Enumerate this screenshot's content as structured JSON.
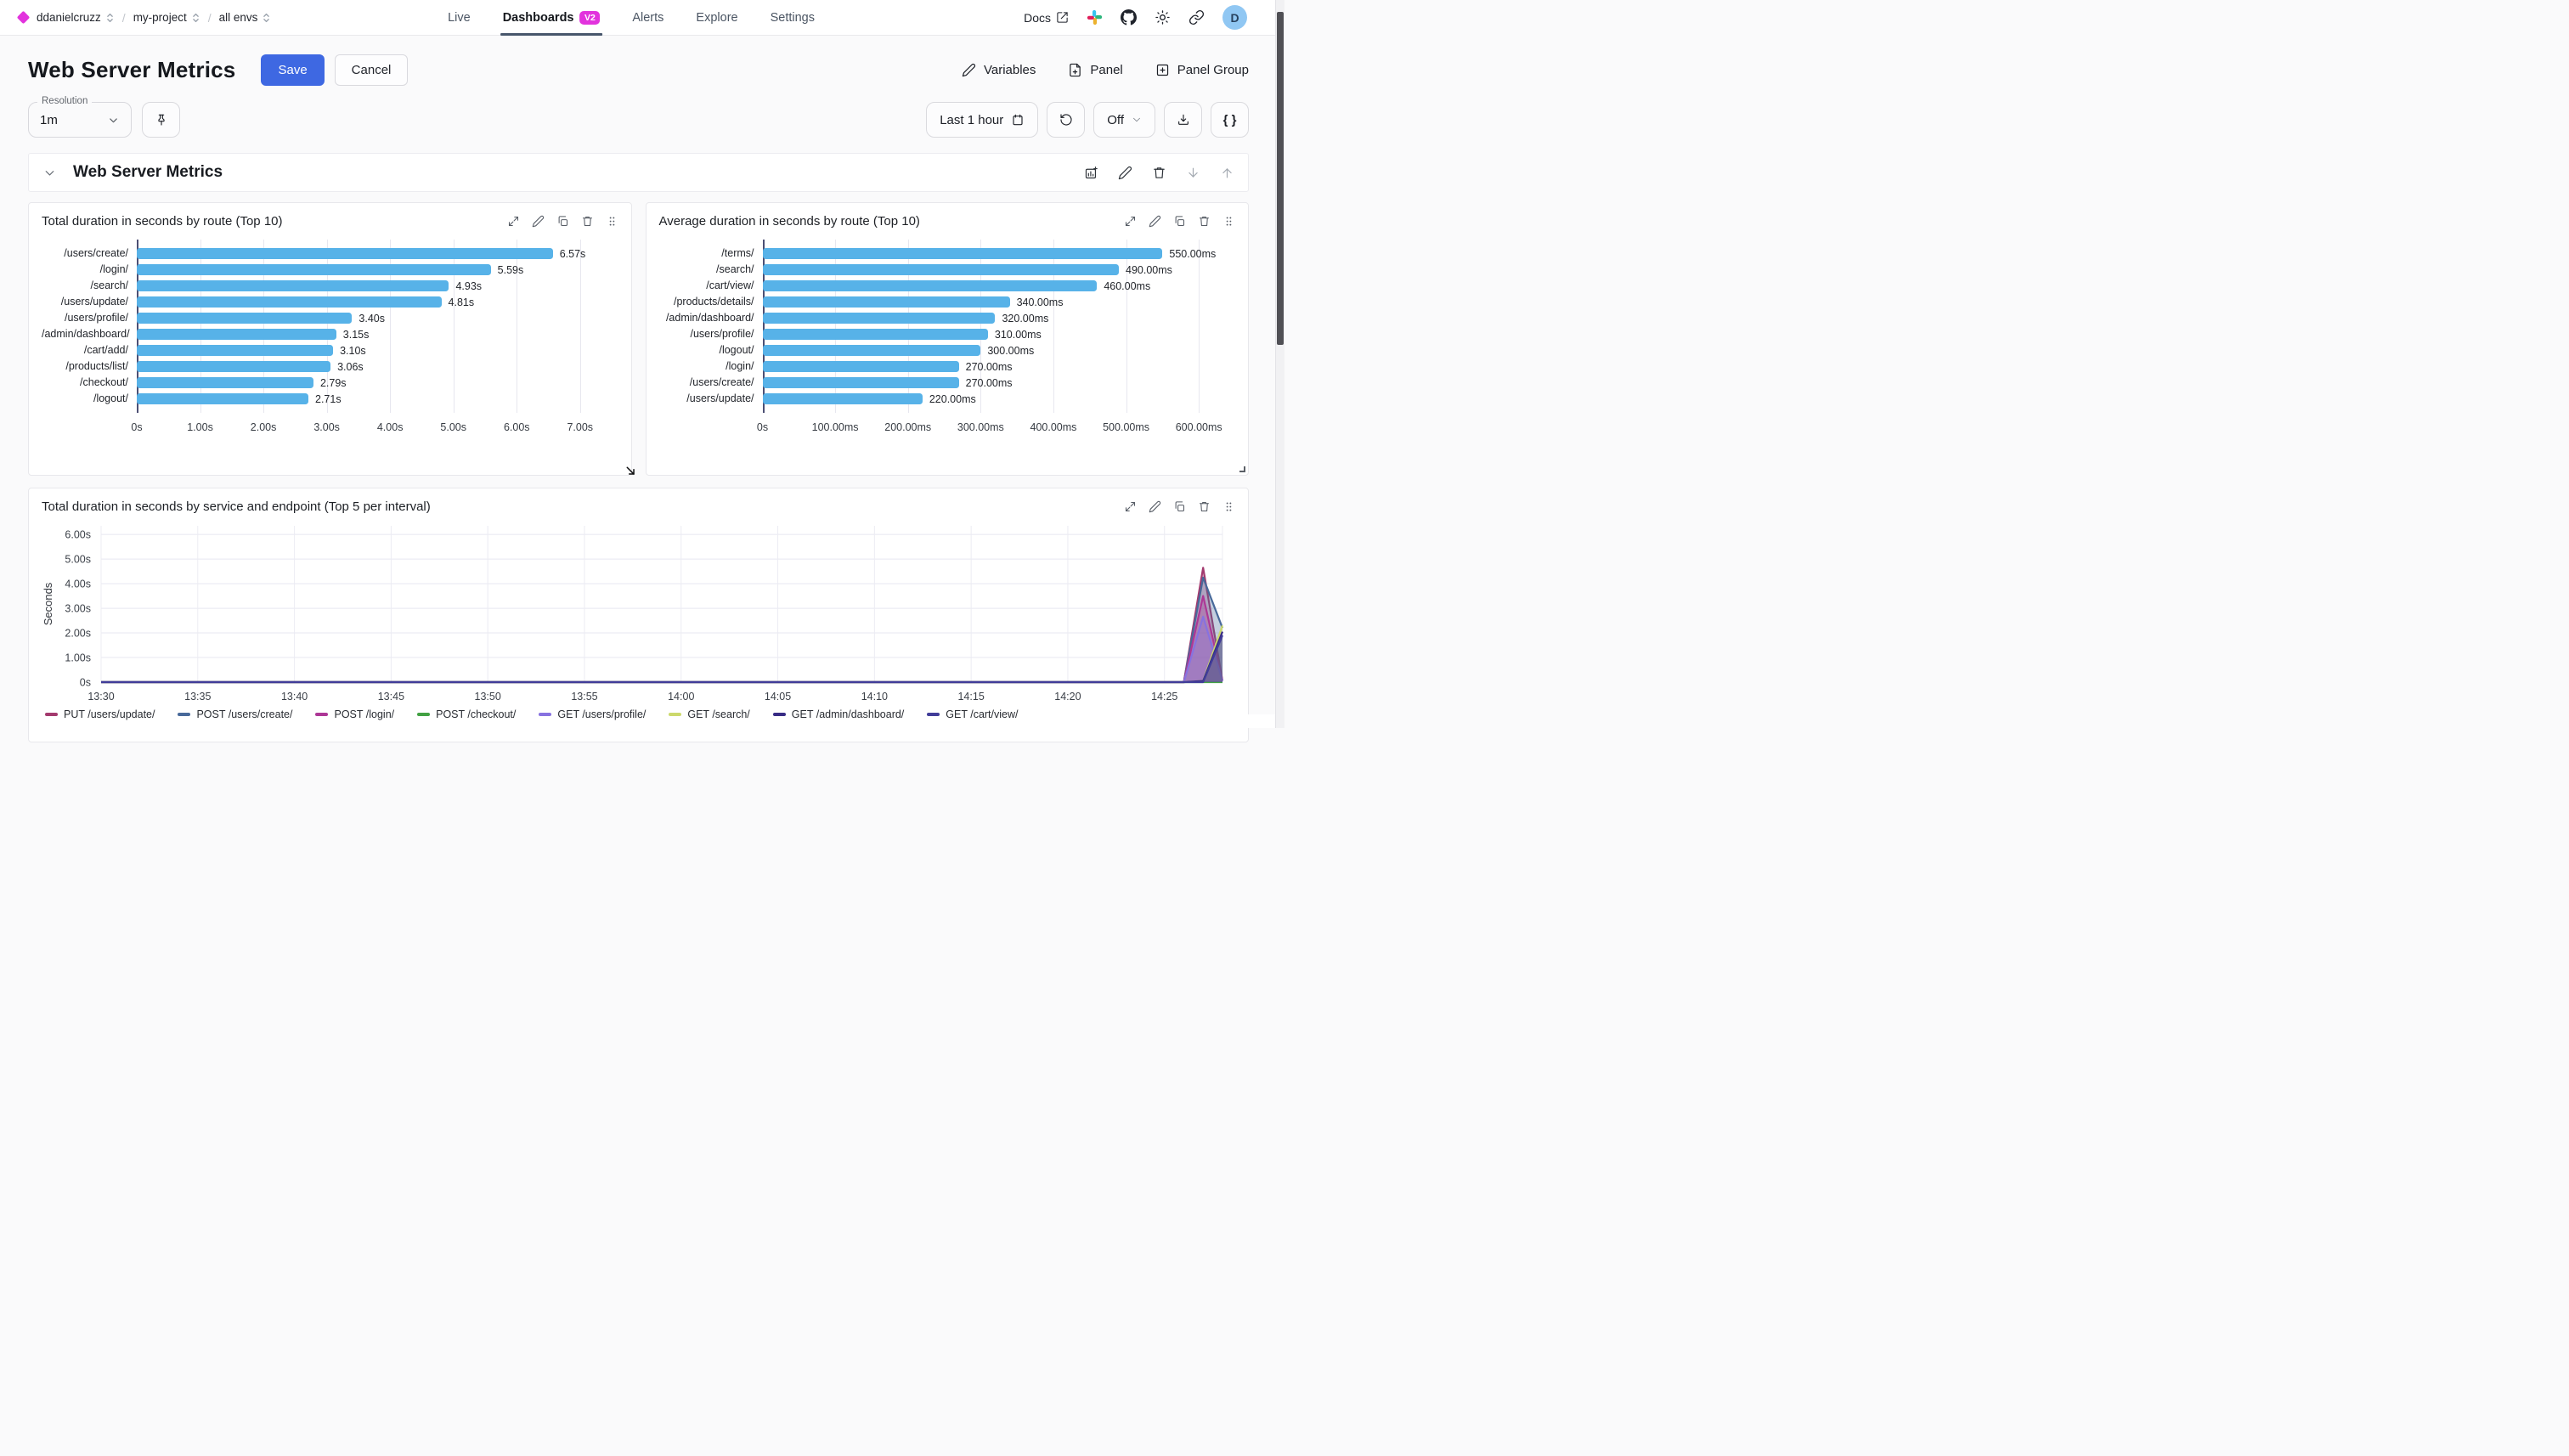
{
  "nav": {
    "breadcrumb": [
      {
        "label": "ddanielcruzz"
      },
      {
        "label": "my-project"
      },
      {
        "label": "all envs"
      }
    ],
    "separator": "/",
    "tabs": [
      {
        "label": "Live"
      },
      {
        "label": "Dashboards",
        "badge": "V2",
        "active": true
      },
      {
        "label": "Alerts"
      },
      {
        "label": "Explore"
      },
      {
        "label": "Settings"
      }
    ],
    "docs_label": "Docs",
    "avatar_letter": "D"
  },
  "header": {
    "title": "Web Server Metrics",
    "save_label": "Save",
    "cancel_label": "Cancel",
    "variables_label": "Variables",
    "panel_label": "Panel",
    "panel_group_label": "Panel Group"
  },
  "toolbar": {
    "resolution_label": "Resolution",
    "resolution_value": "1m",
    "time_range_label": "Last 1 hour",
    "autorefresh_value": "Off",
    "braces_label": "{ }"
  },
  "section": {
    "title": "Web Server Metrics"
  },
  "icons": {
    "down_arrow": "move-panel-down",
    "up_arrow": "move-panel-up",
    "resize": "resize-diagonal"
  },
  "colors": {
    "brand_magenta": "#e233dd",
    "save_blue": "#3e68e2",
    "bar_blue": "#57b2e8",
    "tab_underline": "#47566b"
  },
  "panels": [
    {
      "title": "Total duration in seconds by route (Top 10)",
      "chart_data": {
        "type": "bar",
        "orientation": "horizontal",
        "unit": "seconds",
        "bar_color": "#57b2e8",
        "xmax": 7.6,
        "categories": [
          "/users/create/",
          "/login/",
          "/search/",
          "/users/update/",
          "/users/profile/",
          "/admin/dashboard/",
          "/cart/add/",
          "/products/list/",
          "/checkout/",
          "/logout/"
        ],
        "values": [
          6.57,
          5.59,
          4.93,
          4.81,
          3.4,
          3.15,
          3.1,
          3.06,
          2.79,
          2.71
        ],
        "value_labels": [
          "6.57s",
          "5.59s",
          "4.93s",
          "4.81s",
          "3.40s",
          "3.15s",
          "3.10s",
          "3.06s",
          "2.79s",
          "2.71s"
        ],
        "x_ticks": [
          "0s",
          "1.00s",
          "2.00s",
          "3.00s",
          "4.00s",
          "5.00s",
          "6.00s",
          "7.00s"
        ],
        "x_tick_values": [
          0,
          1,
          2,
          3,
          4,
          5,
          6,
          7
        ]
      }
    },
    {
      "title": "Average duration in seconds by route (Top 10)",
      "chart_data": {
        "type": "bar",
        "orientation": "horizontal",
        "unit": "milliseconds",
        "bar_color": "#57b2e8",
        "xmax": 650,
        "categories": [
          "/terms/",
          "/search/",
          "/cart/view/",
          "/products/details/",
          "/admin/dashboard/",
          "/users/profile/",
          "/logout/",
          "/login/",
          "/users/create/",
          "/users/update/"
        ],
        "values": [
          550,
          490,
          460,
          340,
          320,
          310,
          300,
          270,
          270,
          220
        ],
        "value_labels": [
          "550.00ms",
          "490.00ms",
          "460.00ms",
          "340.00ms",
          "320.00ms",
          "310.00ms",
          "300.00ms",
          "270.00ms",
          "270.00ms",
          "220.00ms"
        ],
        "x_ticks": [
          "0s",
          "100.00ms",
          "200.00ms",
          "300.00ms",
          "400.00ms",
          "500.00ms",
          "600.00ms"
        ],
        "x_tick_values": [
          0,
          100,
          200,
          300,
          400,
          500,
          600
        ]
      }
    },
    {
      "title": "Total duration in seconds by service and endpoint (Top 5 per interval)",
      "chart_data": {
        "type": "area",
        "ylabel": "Seconds",
        "y_ticks": [
          "0s",
          "1.00s",
          "2.00s",
          "3.00s",
          "4.00s",
          "5.00s",
          "6.00s"
        ],
        "y_tick_values": [
          0,
          1,
          2,
          3,
          4,
          5,
          6
        ],
        "y_max": 6.35,
        "x_ticks": [
          "13:30",
          "13:35",
          "13:40",
          "13:45",
          "13:50",
          "13:55",
          "14:00",
          "14:05",
          "14:10",
          "14:15",
          "14:20",
          "14:25"
        ],
        "x_tick_values": [
          0,
          5,
          10,
          15,
          20,
          25,
          30,
          35,
          40,
          45,
          50,
          55
        ],
        "x_max": 58,
        "legend_position": "bottom",
        "grid": true,
        "series": [
          {
            "name": "PUT /users/update/",
            "color": "#a33a6e",
            "points": [
              [
                0,
                0
              ],
              [
                55,
                0
              ],
              [
                56,
                0
              ],
              [
                57,
                4.65
              ],
              [
                58,
                0.05
              ]
            ]
          },
          {
            "name": "POST /users/create/",
            "color": "#48699a",
            "points": [
              [
                0,
                0
              ],
              [
                55,
                0
              ],
              [
                56,
                0
              ],
              [
                57,
                4.25
              ],
              [
                58,
                2.2
              ]
            ]
          },
          {
            "name": "POST /login/",
            "color": "#ad3796",
            "points": [
              [
                0,
                0
              ],
              [
                55,
                0
              ],
              [
                56,
                0
              ],
              [
                57,
                3.5
              ],
              [
                58,
                0.05
              ]
            ]
          },
          {
            "name": "POST /checkout/",
            "color": "#42a143",
            "points": [
              [
                0,
                0
              ],
              [
                58,
                0
              ]
            ]
          },
          {
            "name": "GET /users/profile/",
            "color": "#8772e0",
            "points": [
              [
                0,
                0
              ],
              [
                55,
                0
              ],
              [
                56,
                0
              ],
              [
                57,
                2.66
              ],
              [
                58,
                0.05
              ]
            ]
          },
          {
            "name": "GET /search/",
            "color": "#ccd96c",
            "points": [
              [
                0,
                0
              ],
              [
                56,
                0
              ],
              [
                57,
                0.05
              ],
              [
                58,
                2.3
              ]
            ]
          },
          {
            "name": "GET /admin/dashboard/",
            "color": "#382c85",
            "points": [
              [
                0,
                0
              ],
              [
                56,
                0
              ],
              [
                57,
                0.05
              ],
              [
                58,
                2.05
              ]
            ]
          },
          {
            "name": "GET /cart/view/",
            "color": "#413d99",
            "points": [
              [
                0,
                0
              ],
              [
                56,
                0
              ],
              [
                57,
                0
              ],
              [
                58,
                1.9
              ]
            ]
          }
        ]
      }
    }
  ]
}
